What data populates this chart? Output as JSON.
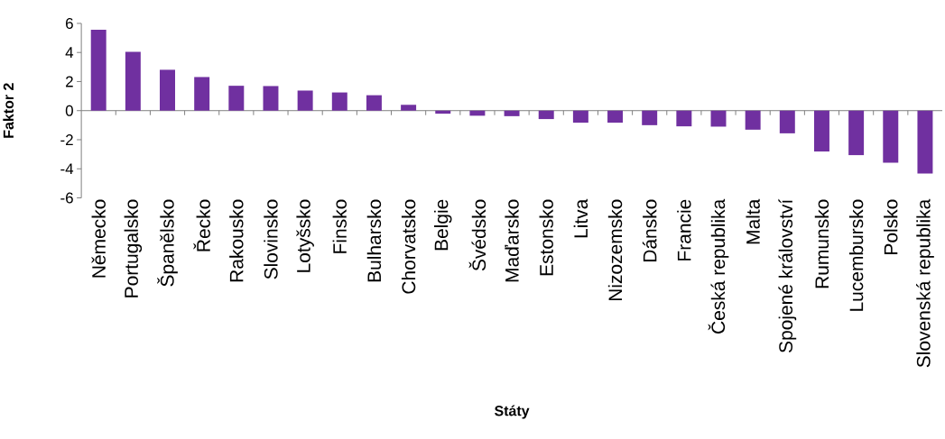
{
  "chart_data": {
    "type": "bar",
    "xlabel": "Státy",
    "ylabel": "Faktor 2",
    "categories": [
      "Německo",
      "Portugalsko",
      "Španělsko",
      "Řecko",
      "Rakousko",
      "Slovinsko",
      "Lotyšsko",
      "Finsko",
      "Bulharsko",
      "Chorvatsko",
      "Belgie",
      "Švédsko",
      "Maďarsko",
      "Estonsko",
      "Litva",
      "Nizozemsko",
      "Dánsko",
      "Francie",
      "Česká republika",
      "Malta",
      "Spojené království",
      "Rumunsko",
      "Lucembursko",
      "Polsko",
      "Slovenská republika"
    ],
    "values": [
      5.56,
      4.04,
      2.81,
      2.31,
      1.71,
      1.69,
      1.38,
      1.25,
      1.06,
      0.4,
      -0.21,
      -0.35,
      -0.38,
      -0.58,
      -0.83,
      -0.83,
      -1.0,
      -1.08,
      -1.1,
      -1.31,
      -1.56,
      -2.81,
      -3.06,
      -3.58,
      -4.33
    ],
    "color": "#7030a0",
    "ylim": [
      -6,
      6
    ],
    "yticks": [
      -6,
      -4,
      -2,
      0,
      2,
      4,
      6
    ]
  }
}
